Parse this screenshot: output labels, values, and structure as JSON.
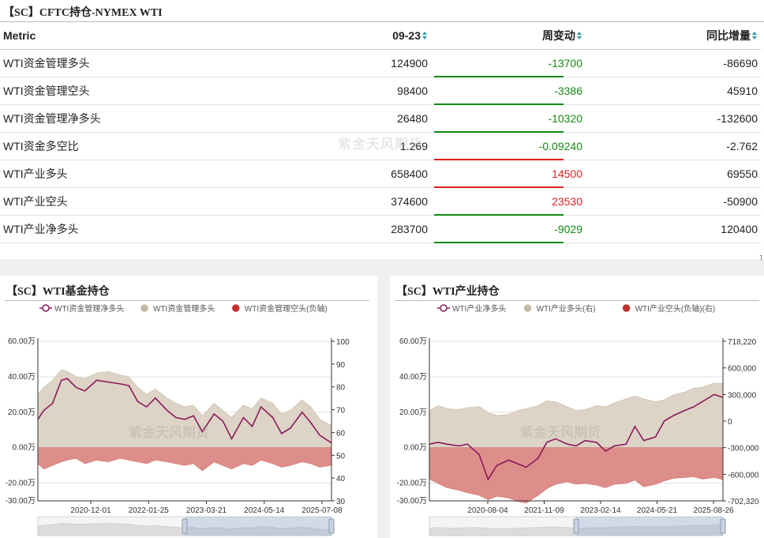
{
  "table_panel": {
    "title": "【SC】CFTC持仓-NYMEX WTI",
    "watermark": "紫金天风期货",
    "columns": [
      "Metric",
      "09-23",
      "周变动",
      "同比增量"
    ],
    "rows": [
      {
        "metric": "WTI资金管理多头",
        "value": "124900",
        "change": "-13700",
        "yoy": "-86690",
        "dir": "neg"
      },
      {
        "metric": "WTI资金管理空头",
        "value": "98400",
        "change": "-3386",
        "yoy": "45910",
        "dir": "neg"
      },
      {
        "metric": "WTI资金管理净多头",
        "value": "26480",
        "change": "-10320",
        "yoy": "-132600",
        "dir": "neg"
      },
      {
        "metric": "WTI资金多空比",
        "value": "1.269",
        "change": "-0.09240",
        "yoy": "-2.762",
        "dir": "neg"
      },
      {
        "metric": "WTI产业多头",
        "value": "658400",
        "change": "14500",
        "yoy": "69550",
        "dir": "pos"
      },
      {
        "metric": "WTI产业空头",
        "value": "374600",
        "change": "23530",
        "yoy": "-50900",
        "dir": "pos"
      },
      {
        "metric": "WTI产业净多头",
        "value": "283700",
        "change": "-9029",
        "yoy": "120400",
        "dir": "neg"
      }
    ],
    "colors": {
      "positive": "#e02020",
      "negative": "#138a13"
    }
  },
  "left_chart": {
    "title": "【SC】WTI基金持仓",
    "watermark": "紫金天风期货"
  },
  "right_chart": {
    "title": "【SC】WTI产业持仓",
    "watermark": "紫金天风期货"
  },
  "chart_data": [
    {
      "type": "area",
      "id": "fund",
      "legend": [
        "WTI资金管理净多头",
        "WTI资金管理多头",
        "WTI资金管理空头(负轴)"
      ],
      "left_axis_labels": [
        "60.00万",
        "40.00万",
        "20.00万",
        "0.00万",
        "-20.00万",
        "-30.00万"
      ],
      "left_axis_values": [
        600000,
        400000,
        200000,
        0,
        -200000,
        -300000
      ],
      "right_axis_labels": [
        "100",
        "90",
        "80",
        "70",
        "60",
        "50",
        "40",
        "30"
      ],
      "x_labels": [
        "2020-12-01",
        "2022-01-25",
        "2023-03-21",
        "2024-05-14",
        "2025-07-08"
      ],
      "ylim": [
        -300000,
        600000
      ],
      "x_points": [
        0,
        0.02,
        0.05,
        0.08,
        0.1,
        0.13,
        0.16,
        0.2,
        0.24,
        0.28,
        0.31,
        0.34,
        0.37,
        0.4,
        0.44,
        0.47,
        0.5,
        0.53,
        0.56,
        0.6,
        0.63,
        0.66,
        0.7,
        0.73,
        0.76,
        0.8,
        0.83,
        0.86,
        0.9,
        0.93,
        0.96,
        1
      ],
      "net_long": [
        160000,
        210000,
        250000,
        380000,
        390000,
        340000,
        320000,
        380000,
        370000,
        360000,
        350000,
        260000,
        230000,
        280000,
        210000,
        170000,
        160000,
        180000,
        90000,
        190000,
        150000,
        50000,
        170000,
        120000,
        230000,
        170000,
        80000,
        110000,
        200000,
        140000,
        70000,
        26480
      ],
      "gross_long": [
        300000,
        340000,
        380000,
        440000,
        430000,
        400000,
        390000,
        420000,
        430000,
        410000,
        400000,
        340000,
        300000,
        330000,
        280000,
        250000,
        230000,
        240000,
        180000,
        250000,
        210000,
        170000,
        240000,
        220000,
        280000,
        250000,
        190000,
        210000,
        270000,
        230000,
        160000,
        124900
      ],
      "short_negative": [
        -90000,
        -120000,
        -100000,
        -80000,
        -70000,
        -60000,
        -90000,
        -70000,
        -80000,
        -60000,
        -70000,
        -80000,
        -90000,
        -70000,
        -80000,
        -90000,
        -100000,
        -90000,
        -130000,
        -80000,
        -100000,
        -120000,
        -90000,
        -100000,
        -70000,
        -90000,
        -110000,
        -100000,
        -80000,
        -90000,
        -110000,
        -98400
      ]
    },
    {
      "type": "area",
      "id": "industry",
      "legend": [
        "WTI产业净多头",
        "WTI产业多头(右)",
        "WTI产业空头(负轴)(右)"
      ],
      "left_axis_labels": [
        "60.00万",
        "40.00万",
        "20.00万",
        "0.00万",
        "-20.00万",
        "-30.00万"
      ],
      "left_axis_values": [
        600000,
        400000,
        200000,
        0,
        -200000,
        -300000
      ],
      "right_axis_labels": [
        "718,220",
        "600,000",
        "300,000",
        "0",
        "-300,000",
        "-600,000",
        "-702,320"
      ],
      "x_labels": [
        "2020-08-04",
        "2021-11-09",
        "2023-02-14",
        "2024-05-21",
        "2025-08-26"
      ],
      "ylim": [
        -300000,
        600000
      ],
      "x_points": [
        0,
        0.03,
        0.06,
        0.1,
        0.13,
        0.17,
        0.2,
        0.23,
        0.27,
        0.3,
        0.33,
        0.37,
        0.4,
        0.43,
        0.47,
        0.5,
        0.53,
        0.57,
        0.6,
        0.63,
        0.67,
        0.7,
        0.73,
        0.77,
        0.8,
        0.83,
        0.87,
        0.9,
        0.93,
        0.97,
        1
      ],
      "net_long": [
        20000,
        30000,
        20000,
        10000,
        20000,
        -40000,
        -180000,
        -100000,
        -70000,
        -90000,
        -110000,
        -60000,
        30000,
        50000,
        20000,
        10000,
        40000,
        30000,
        -20000,
        10000,
        20000,
        120000,
        40000,
        60000,
        150000,
        180000,
        210000,
        230000,
        260000,
        300000,
        283700
      ],
      "gross_long_right": [
        380000,
        430000,
        400000,
        390000,
        410000,
        420000,
        360000,
        330000,
        340000,
        380000,
        400000,
        430000,
        480000,
        470000,
        420000,
        380000,
        390000,
        430000,
        420000,
        460000,
        500000,
        530000,
        500000,
        470000,
        490000,
        540000,
        570000,
        610000,
        620000,
        660000,
        658400
      ],
      "short_negative_right": [
        -370000,
        -420000,
        -470000,
        -500000,
        -530000,
        -560000,
        -610000,
        -570000,
        -590000,
        -630000,
        -650000,
        -560000,
        -480000,
        -430000,
        -400000,
        -430000,
        -420000,
        -440000,
        -470000,
        -430000,
        -420000,
        -380000,
        -460000,
        -430000,
        -390000,
        -360000,
        -350000,
        -340000,
        -370000,
        -350000,
        -374600
      ]
    }
  ]
}
